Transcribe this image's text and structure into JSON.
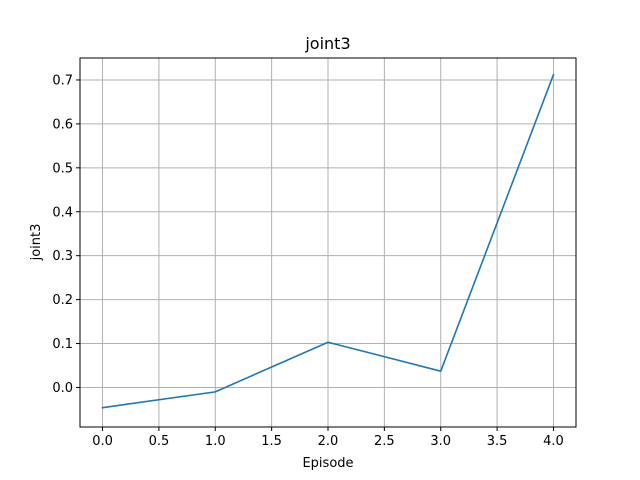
{
  "chart_data": {
    "type": "line",
    "title": "joint3",
    "xlabel": "Episode",
    "ylabel": "joint3",
    "xlim": [
      -0.2,
      4.2
    ],
    "ylim": [
      -0.09,
      0.75
    ],
    "x_ticks": [
      0.0,
      0.5,
      1.0,
      1.5,
      2.0,
      2.5,
      3.0,
      3.5,
      4.0
    ],
    "x_tick_labels": [
      "0.0",
      "0.5",
      "1.0",
      "1.5",
      "2.0",
      "2.5",
      "3.0",
      "3.5",
      "4.0"
    ],
    "y_ticks": [
      0.0,
      0.1,
      0.2,
      0.3,
      0.4,
      0.5,
      0.6,
      0.7
    ],
    "y_tick_labels": [
      "0.0",
      "0.1",
      "0.2",
      "0.3",
      "0.4",
      "0.5",
      "0.6",
      "0.7"
    ],
    "grid": true,
    "series": [
      {
        "color": "#1f77b4",
        "x": [
          0,
          1,
          2,
          3,
          4
        ],
        "y": [
          -0.046,
          -0.01,
          0.103,
          0.037,
          0.712
        ]
      }
    ]
  }
}
